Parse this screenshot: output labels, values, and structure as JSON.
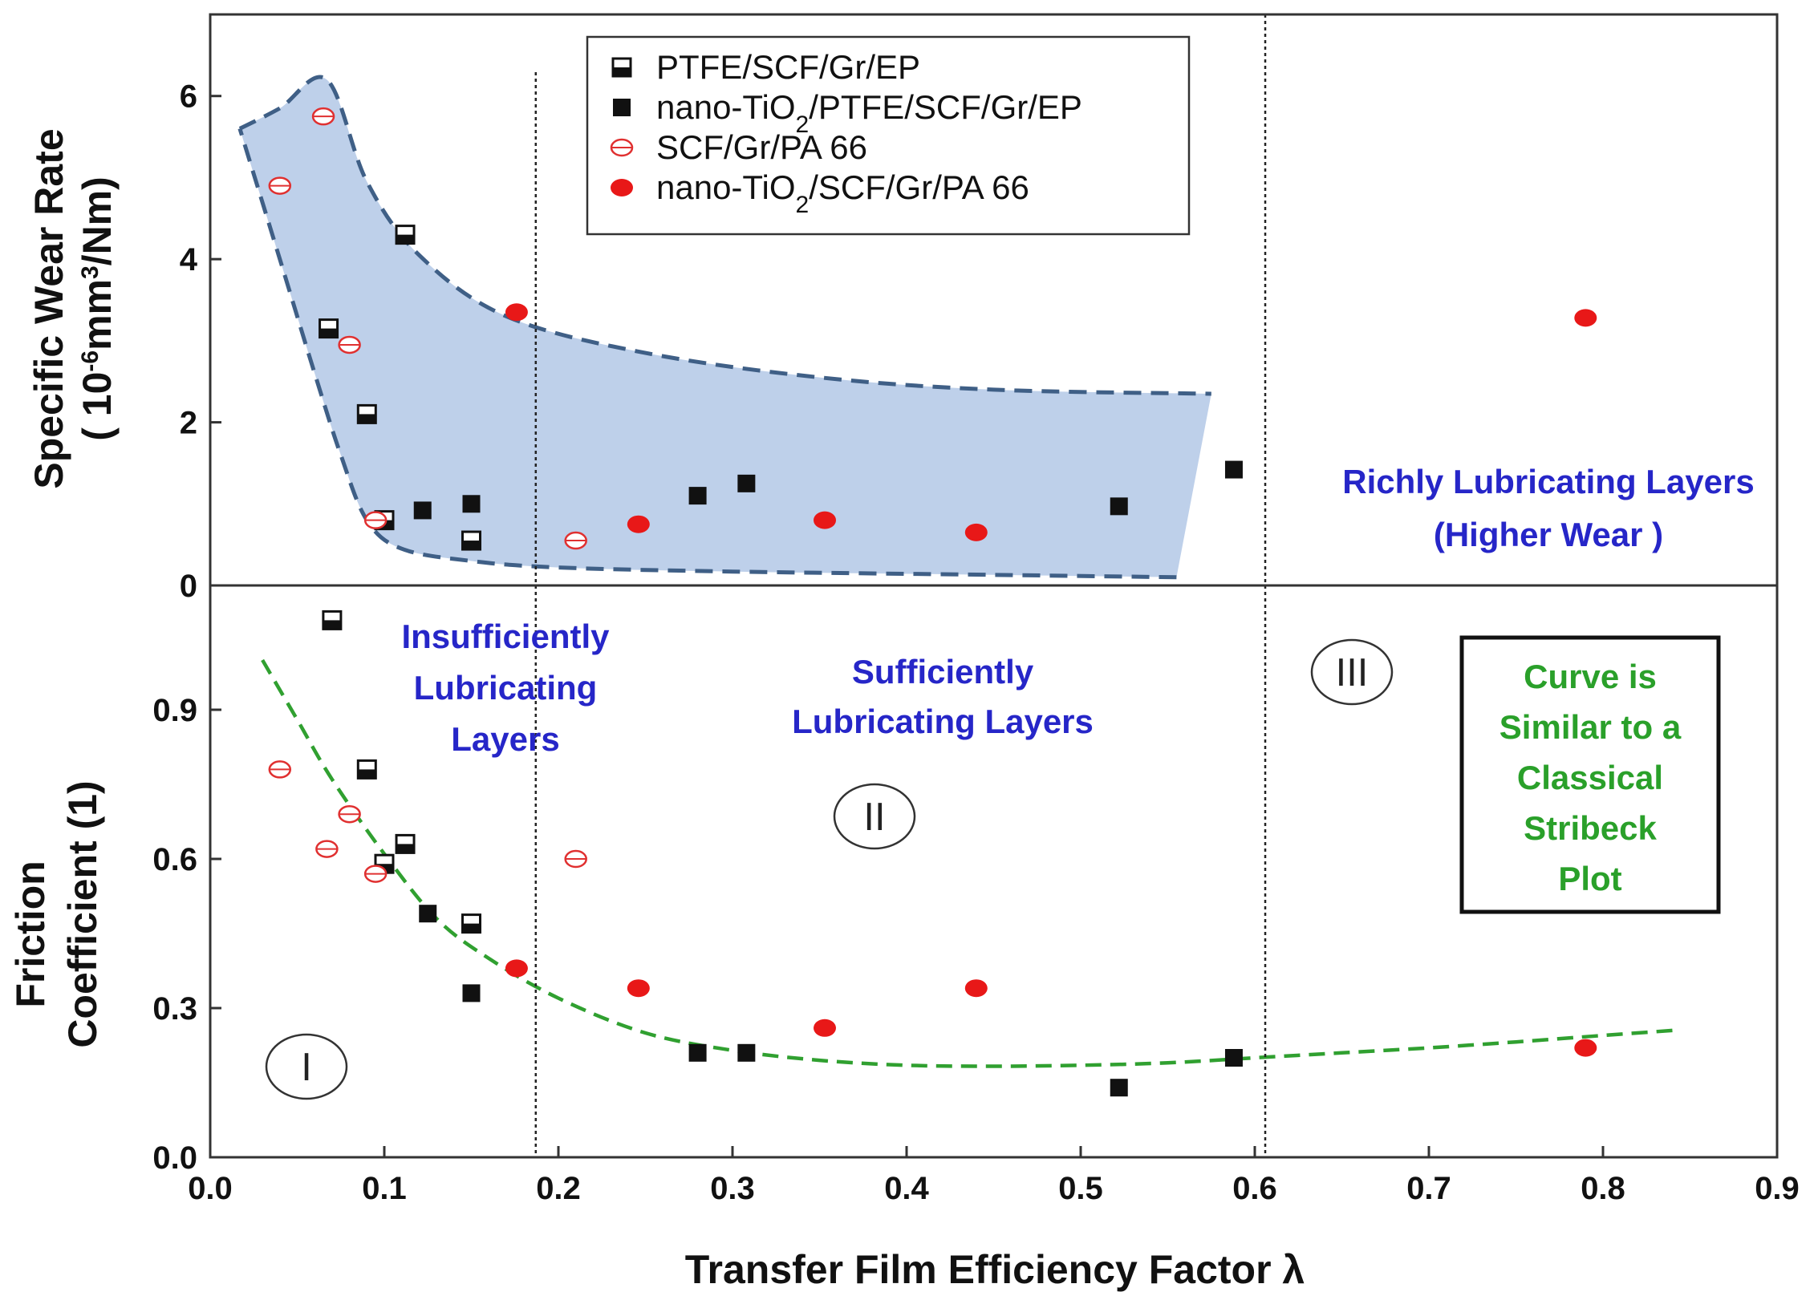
{
  "chart_data": {
    "type": "scatter",
    "xlabel": "Transfer Film Efficiency Factor  λ",
    "xlim": [
      0.0,
      0.9
    ],
    "xticks": [
      "0.0",
      "0.1",
      "0.2",
      "0.3",
      "0.4",
      "0.5",
      "0.6",
      "0.7",
      "0.8",
      "0.9"
    ],
    "panels": {
      "top": {
        "ylabel_line1": "Specific Wear Rate",
        "ylabel_line2": "( 10-6mm3/Nm)",
        "ylim": [
          0,
          7
        ],
        "yticks": [
          "0",
          "2",
          "4",
          "6"
        ],
        "band_upper": [
          [
            0.017,
            5.6
          ],
          [
            0.04,
            5.85
          ],
          [
            0.067,
            6.2
          ],
          [
            0.09,
            4.95
          ],
          [
            0.12,
            4.05
          ],
          [
            0.17,
            3.3
          ],
          [
            0.25,
            2.85
          ],
          [
            0.35,
            2.55
          ],
          [
            0.45,
            2.4
          ],
          [
            0.575,
            2.35
          ]
        ],
        "band_lower": [
          [
            0.555,
            0.1
          ],
          [
            0.45,
            0.13
          ],
          [
            0.3,
            0.17
          ],
          [
            0.2,
            0.22
          ],
          [
            0.15,
            0.3
          ],
          [
            0.11,
            0.45
          ],
          [
            0.09,
            0.8
          ],
          [
            0.075,
            1.6
          ],
          [
            0.06,
            2.6
          ],
          [
            0.04,
            4.0
          ],
          [
            0.017,
            5.6
          ]
        ],
        "band_right_edge": [
          [
            0.575,
            2.35
          ],
          [
            0.555,
            0.1
          ]
        ]
      },
      "bottom": {
        "ylabel_line1": "Friction",
        "ylabel_line2": "Coefficient  (1)",
        "ylim": [
          0.0,
          1.15
        ],
        "yticks": [
          "0.0",
          "0.3",
          "0.6",
          "0.9"
        ],
        "trend_curve": [
          [
            0.03,
            1.0
          ],
          [
            0.05,
            0.88
          ],
          [
            0.07,
            0.76
          ],
          [
            0.1,
            0.61
          ],
          [
            0.13,
            0.48
          ],
          [
            0.16,
            0.4
          ],
          [
            0.2,
            0.32
          ],
          [
            0.25,
            0.25
          ],
          [
            0.3,
            0.215
          ],
          [
            0.35,
            0.195
          ],
          [
            0.4,
            0.185
          ],
          [
            0.45,
            0.183
          ],
          [
            0.5,
            0.185
          ],
          [
            0.55,
            0.19
          ],
          [
            0.6,
            0.2
          ],
          [
            0.65,
            0.21
          ],
          [
            0.7,
            0.22
          ],
          [
            0.75,
            0.232
          ],
          [
            0.8,
            0.245
          ],
          [
            0.84,
            0.255
          ]
        ]
      }
    },
    "series": [
      {
        "name": "PTFE/SCF/Gr/EP",
        "marker": "half-filled-square",
        "color": "#111111",
        "wear": [
          [
            0.068,
            3.15
          ],
          [
            0.09,
            2.1
          ],
          [
            0.1,
            0.8
          ],
          [
            0.112,
            4.3
          ],
          [
            0.15,
            0.55
          ]
        ],
        "friction": [
          [
            0.07,
            1.08
          ],
          [
            0.09,
            0.78
          ],
          [
            0.1,
            0.59
          ],
          [
            0.112,
            0.63
          ],
          [
            0.15,
            0.47
          ]
        ]
      },
      {
        "name": "nano-TiO2/PTFE/SCF/Gr/EP",
        "marker": "filled-square",
        "color": "#111111",
        "wear": [
          [
            0.122,
            0.92
          ],
          [
            0.15,
            1.0
          ],
          [
            0.28,
            1.1
          ],
          [
            0.308,
            1.25
          ],
          [
            0.522,
            0.97
          ],
          [
            0.588,
            1.42
          ]
        ],
        "friction": [
          [
            0.125,
            0.49
          ],
          [
            0.15,
            0.33
          ],
          [
            0.28,
            0.21
          ],
          [
            0.308,
            0.21
          ],
          [
            0.522,
            0.14
          ],
          [
            0.588,
            0.2
          ]
        ]
      },
      {
        "name": "SCF/Gr/PA 66",
        "marker": "open-circle",
        "color": "#e03030",
        "wear": [
          [
            0.04,
            4.9
          ],
          [
            0.065,
            5.75
          ],
          [
            0.08,
            2.95
          ],
          [
            0.095,
            0.8
          ],
          [
            0.21,
            0.55
          ]
        ],
        "friction": [
          [
            0.04,
            0.78
          ],
          [
            0.067,
            0.62
          ],
          [
            0.08,
            0.69
          ],
          [
            0.095,
            0.57
          ],
          [
            0.21,
            0.6
          ]
        ]
      },
      {
        "name": "nano-TiO2/SCF/Gr/PA 66",
        "marker": "filled-circle",
        "color": "#e81818",
        "wear": [
          [
            0.176,
            3.35
          ],
          [
            0.246,
            0.75
          ],
          [
            0.353,
            0.8
          ],
          [
            0.44,
            0.65
          ],
          [
            0.79,
            3.28
          ]
        ],
        "friction": [
          [
            0.176,
            0.38
          ],
          [
            0.246,
            0.34
          ],
          [
            0.353,
            0.26
          ],
          [
            0.44,
            0.34
          ],
          [
            0.79,
            0.22
          ]
        ]
      }
    ],
    "legend": [
      {
        "name": "PTFE/SCF/Gr/EP"
      },
      {
        "name": "nano-TiO",
        "sub": "2",
        "rest": "/PTFE/SCF/Gr/EP"
      },
      {
        "name": "SCF/Gr/PA 66"
      },
      {
        "name": "nano-TiO",
        "sub": "2",
        "rest": "/SCF/Gr/PA 66"
      }
    ],
    "vertical_dividers": [
      0.187,
      0.606
    ],
    "annotations": {
      "region1_lines": [
        "Insufficiently",
        "Lubricating",
        "Layers"
      ],
      "region2_lines": [
        "Sufficiently",
        "Lubricating Layers"
      ],
      "region3_lines": [
        "Richly Lubricating Layers",
        "(Higher Wear )"
      ],
      "roman_numerals": [
        "I",
        "II",
        "III"
      ],
      "box_lines": [
        "Curve is",
        "Similar to a",
        "Classical",
        "Stribeck",
        "Plot"
      ]
    },
    "colors": {
      "band_fill": "#bed0ea",
      "band_edge": "#3f5f86",
      "trend": "#30a030",
      "region_text": "#2626c8",
      "box_text": "#2aa02a"
    }
  }
}
